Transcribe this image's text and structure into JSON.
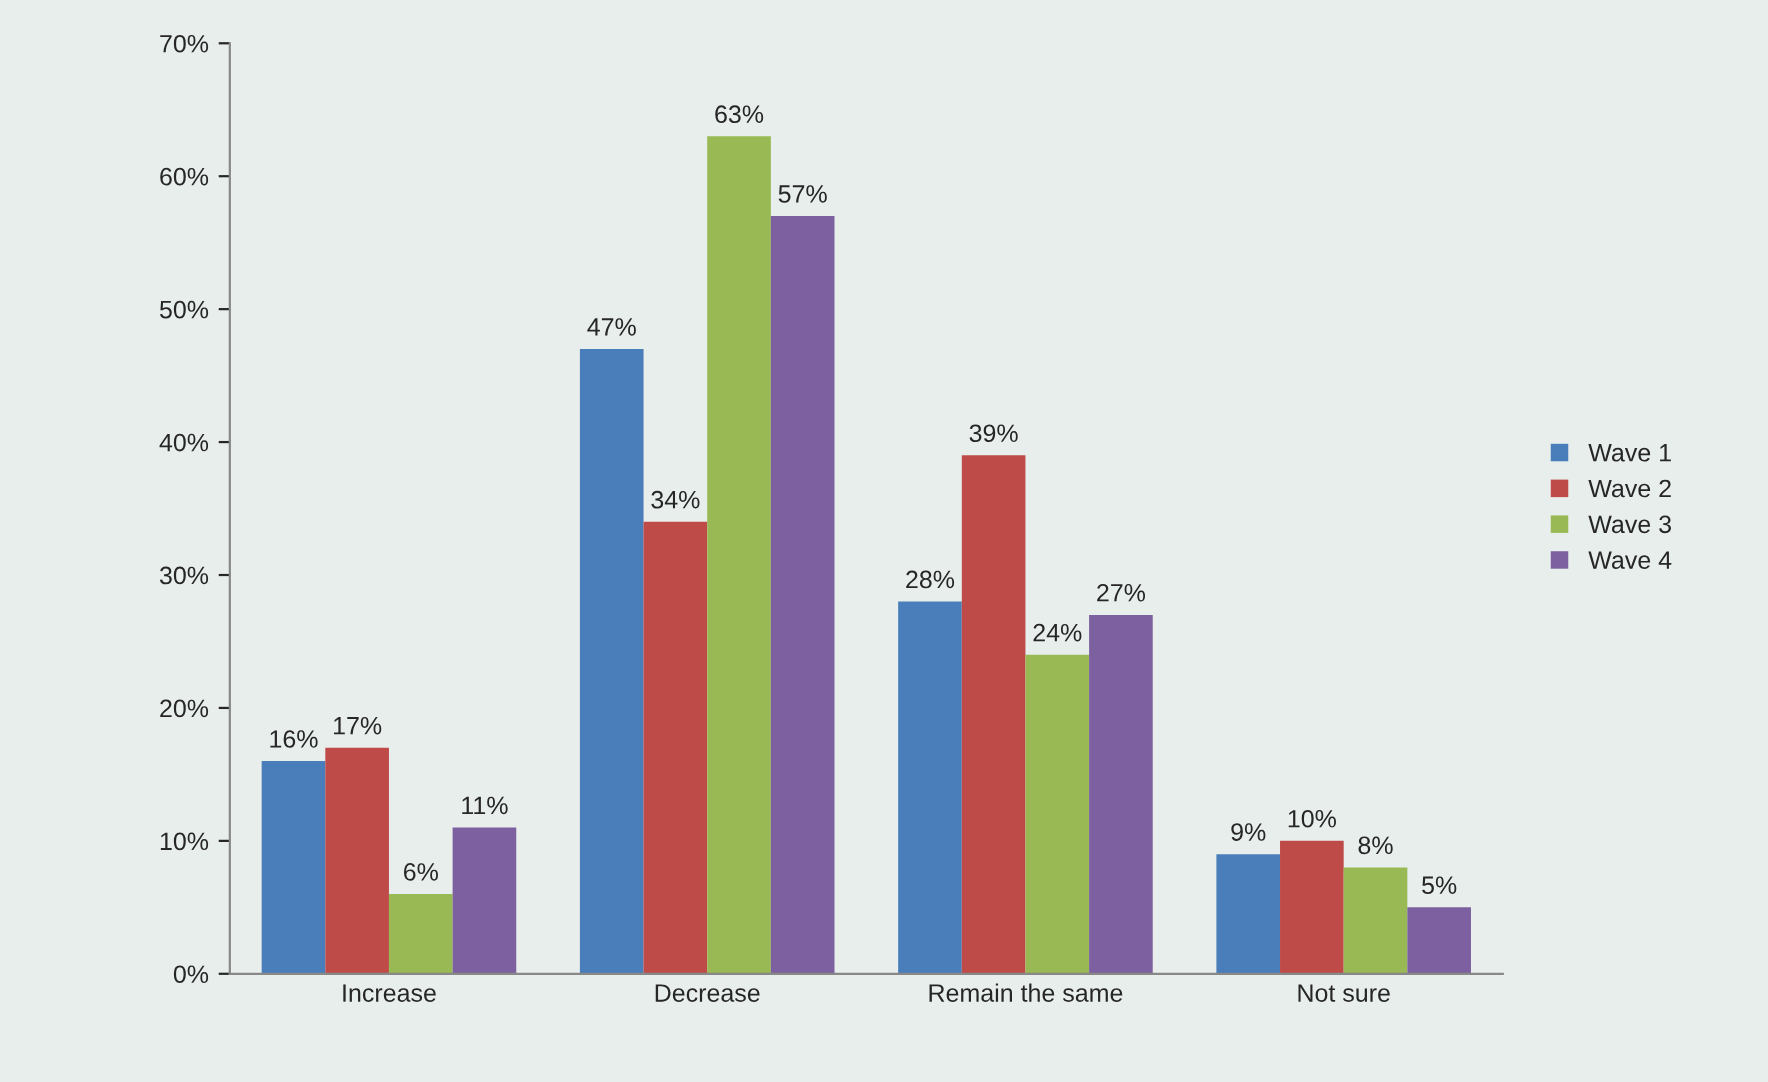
{
  "chart_data": {
    "type": "bar",
    "categories": [
      "Increase",
      "Decrease",
      "Remain the same",
      "Not sure"
    ],
    "series": [
      {
        "name": "Wave 1",
        "color": "#4a7ebb",
        "values": [
          16,
          47,
          28,
          9
        ],
        "value_labels": [
          "16%",
          "47%",
          "28%",
          "9%"
        ]
      },
      {
        "name": "Wave 2",
        "color": "#be4b48",
        "values": [
          17,
          34,
          39,
          10
        ],
        "value_labels": [
          "17%",
          "34%",
          "39%",
          "10%"
        ]
      },
      {
        "name": "Wave 3",
        "color": "#98b954",
        "values": [
          6,
          63,
          24,
          8
        ],
        "value_labels": [
          "6%",
          "63%",
          "24%",
          "8%"
        ]
      },
      {
        "name": "Wave 4",
        "color": "#7d60a0",
        "values": [
          11,
          57,
          27,
          5
        ],
        "value_labels": [
          "11%",
          "57%",
          "27%",
          "5%"
        ]
      }
    ],
    "ylim": [
      0,
      70
    ],
    "yticks": [
      {
        "value": 0,
        "label": "0%"
      },
      {
        "value": 10,
        "label": "10%"
      },
      {
        "value": 20,
        "label": "20%"
      },
      {
        "value": 30,
        "label": "30%"
      },
      {
        "value": 40,
        "label": "40%"
      },
      {
        "value": 50,
        "label": "50%"
      },
      {
        "value": 60,
        "label": "60%"
      },
      {
        "value": 70,
        "label": "70%"
      }
    ],
    "grid": false,
    "legend": "right"
  }
}
